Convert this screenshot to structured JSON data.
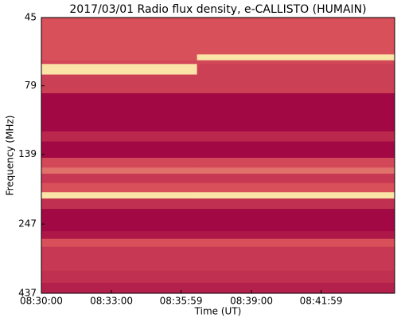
{
  "chart_data": {
    "type": "heatmap",
    "title": "2017/03/01  Radio flux density, e-CALLISTO (HUMAIN)",
    "x_label": "Time (UT)",
    "y_label": "Frequency (MHz)",
    "xlim": [
      30600,
      31508
    ],
    "xticks": [
      {
        "value": 30600,
        "label": "08:30:00"
      },
      {
        "value": 30780,
        "label": "08:33:00"
      },
      {
        "value": 30959,
        "label": "08:35:59"
      },
      {
        "value": 31140,
        "label": "08:39:00"
      },
      {
        "value": 31319,
        "label": "08:41:59"
      }
    ],
    "ylim": [
      45,
      437
    ],
    "y_log": true,
    "y_inverted": true,
    "yticks": [
      45,
      79,
      139,
      247,
      437
    ],
    "x_edges": [
      30600,
      31000,
      31508
    ],
    "y_edges": [
      45,
      61,
      64,
      66,
      72,
      84,
      115,
      125,
      143,
      155,
      163,
      176,
      190,
      200,
      218,
      262,
      279,
      298,
      363,
      401,
      437
    ],
    "z": [
      [
        0.5,
        0.5
      ],
      [
        0.5,
        0.95
      ],
      [
        0.45,
        0.45
      ],
      [
        0.95,
        0.4
      ],
      [
        0.4,
        0.4
      ],
      [
        0.05,
        0.05
      ],
      [
        0.25,
        0.25
      ],
      [
        0.05,
        0.05
      ],
      [
        0.45,
        0.45
      ],
      [
        0.6,
        0.6
      ],
      [
        0.35,
        0.35
      ],
      [
        0.5,
        0.5
      ],
      [
        0.95,
        0.95
      ],
      [
        0.3,
        0.3
      ],
      [
        0.05,
        0.05
      ],
      [
        0.15,
        0.15
      ],
      [
        0.5,
        0.5
      ],
      [
        0.35,
        0.35
      ],
      [
        0.3,
        0.3
      ],
      [
        0.2,
        0.2
      ]
    ],
    "colormap": [
      "#9b0041",
      "#d8505a",
      "#fff5b0"
    ]
  }
}
